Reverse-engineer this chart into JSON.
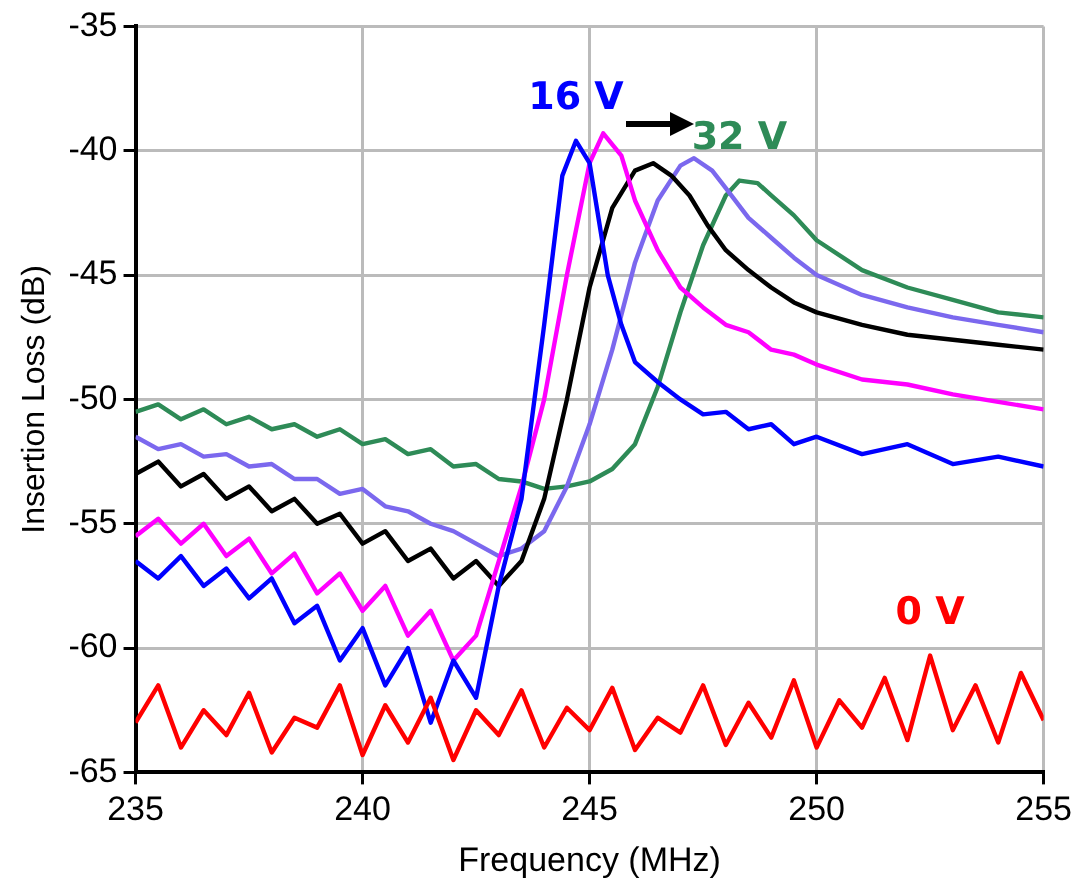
{
  "chart_data": {
    "type": "line",
    "xlabel": "Frequency (MHz)",
    "ylabel": "Insertion Loss (dB)",
    "xlim": [
      235,
      255
    ],
    "xticks": [
      235,
      240,
      245,
      250,
      255
    ],
    "ylim": [
      -65,
      -35
    ],
    "yticks": [
      -65,
      -60,
      -55,
      -50,
      -45,
      -40,
      -35
    ],
    "grid": true,
    "legend": false,
    "marker": "none",
    "line_style": "solid",
    "series": [
      {
        "name": "0 V",
        "color": "#ff0000",
        "x": [
          235,
          235.5,
          236,
          236.5,
          237,
          237.5,
          238,
          238.5,
          239,
          239.5,
          240,
          240.5,
          241,
          241.5,
          242,
          242.5,
          243,
          243.5,
          244,
          244.5,
          245,
          245.5,
          246,
          246.5,
          247,
          247.5,
          248,
          248.5,
          249,
          249.5,
          250,
          250.5,
          251,
          251.5,
          252,
          252.5,
          253,
          253.5,
          254,
          254.5,
          255
        ],
        "values": [
          -63,
          -61.5,
          -64,
          -62.5,
          -63.5,
          -61.8,
          -64.2,
          -62.8,
          -63.2,
          -61.5,
          -64.3,
          -62.3,
          -63.8,
          -62,
          -64.5,
          -62.5,
          -63.5,
          -61.7,
          -64,
          -62.4,
          -63.3,
          -61.6,
          -64.1,
          -62.8,
          -63.4,
          -61.5,
          -63.9,
          -62.2,
          -63.6,
          -61.3,
          -64,
          -62.1,
          -63.2,
          -61.2,
          -63.7,
          -60.3,
          -63.3,
          -61.5,
          -63.8,
          -61,
          -62.9
        ]
      },
      {
        "name": "16 V",
        "color": "#0000ff",
        "x": [
          235,
          235.5,
          236,
          236.5,
          237,
          237.5,
          238,
          238.5,
          239,
          239.5,
          240,
          240.5,
          241,
          241.5,
          242,
          242.5,
          243,
          243.5,
          244,
          244.4,
          244.7,
          245,
          245.4,
          245.7,
          246,
          246.5,
          247,
          247.5,
          248,
          248.5,
          249,
          249.5,
          250,
          251,
          252,
          253,
          254,
          255
        ],
        "values": [
          -56.5,
          -57.2,
          -56.3,
          -57.5,
          -56.8,
          -58,
          -57.2,
          -59,
          -58.3,
          -60.5,
          -59.2,
          -61.5,
          -60,
          -63,
          -60.5,
          -62,
          -57.5,
          -54,
          -47,
          -41,
          -39.6,
          -40.5,
          -45,
          -47,
          -48.5,
          -49.3,
          -50,
          -50.6,
          -50.5,
          -51.2,
          -51,
          -51.8,
          -51.5,
          -52.2,
          -51.8,
          -52.6,
          -52.3,
          -52.7
        ]
      },
      {
        "color": "#ff00ff",
        "x": [
          235,
          235.5,
          236,
          236.5,
          237,
          237.5,
          238,
          238.5,
          239,
          239.5,
          240,
          240.5,
          241,
          241.5,
          242,
          242.5,
          243,
          243.5,
          244,
          244.5,
          245,
          245.3,
          245.7,
          246,
          246.5,
          247,
          247.5,
          248,
          248.5,
          249,
          249.5,
          250,
          251,
          252,
          253,
          254,
          255
        ],
        "values": [
          -55.5,
          -54.8,
          -55.8,
          -55,
          -56.3,
          -55.6,
          -57,
          -56.2,
          -57.8,
          -57,
          -58.5,
          -57.5,
          -59.5,
          -58.5,
          -60.5,
          -59.5,
          -56.5,
          -53.5,
          -50,
          -45,
          -40.5,
          -39.3,
          -40.2,
          -42,
          -44,
          -45.5,
          -46.3,
          -47,
          -47.3,
          -48,
          -48.2,
          -48.6,
          -49.2,
          -49.4,
          -49.8,
          -50.1,
          -50.4
        ]
      },
      {
        "color": "#000000",
        "x": [
          235,
          235.5,
          236,
          236.5,
          237,
          237.5,
          238,
          238.5,
          239,
          239.5,
          240,
          240.5,
          241,
          241.5,
          242,
          242.5,
          243,
          243.5,
          244,
          244.5,
          245,
          245.5,
          246,
          246.4,
          246.8,
          247.2,
          247.6,
          248,
          248.5,
          249,
          249.5,
          250,
          251,
          252,
          253,
          254,
          255
        ],
        "values": [
          -53,
          -52.5,
          -53.5,
          -53,
          -54,
          -53.5,
          -54.5,
          -54,
          -55,
          -54.6,
          -55.8,
          -55.3,
          -56.5,
          -56,
          -57.2,
          -56.5,
          -57.5,
          -56.5,
          -54,
          -50,
          -45.5,
          -42.3,
          -40.8,
          -40.5,
          -41,
          -41.8,
          -43,
          -44,
          -44.8,
          -45.5,
          -46.1,
          -46.5,
          -47,
          -47.4,
          -47.6,
          -47.8,
          -48
        ]
      },
      {
        "color": "#7b68ee",
        "x": [
          235,
          235.5,
          236,
          236.5,
          237,
          237.5,
          238,
          238.5,
          239,
          239.5,
          240,
          240.5,
          241,
          241.5,
          242,
          242.5,
          243,
          243.5,
          244,
          244.5,
          245,
          245.5,
          246,
          246.5,
          247,
          247.3,
          247.7,
          248,
          248.5,
          249,
          249.5,
          250,
          251,
          252,
          253,
          254,
          255
        ],
        "values": [
          -51.5,
          -52,
          -51.8,
          -52.3,
          -52.2,
          -52.7,
          -52.6,
          -53.2,
          -53.2,
          -53.8,
          -53.6,
          -54.3,
          -54.5,
          -55,
          -55.3,
          -55.8,
          -56.3,
          -56,
          -55.3,
          -53.5,
          -51,
          -48,
          -44.5,
          -42,
          -40.6,
          -40.3,
          -40.8,
          -41.5,
          -42.7,
          -43.5,
          -44.3,
          -45,
          -45.8,
          -46.3,
          -46.7,
          -47,
          -47.3
        ]
      },
      {
        "name": "32 V",
        "color": "#2e8b57",
        "x": [
          235,
          235.5,
          236,
          236.5,
          237,
          237.5,
          238,
          238.5,
          239,
          239.5,
          240,
          240.5,
          241,
          241.5,
          242,
          242.5,
          243,
          243.5,
          244,
          244.5,
          245,
          245.5,
          246,
          246.5,
          247,
          247.5,
          248,
          248.3,
          248.7,
          249,
          249.5,
          250,
          251,
          252,
          253,
          254,
          255
        ],
        "values": [
          -50.5,
          -50.2,
          -50.8,
          -50.4,
          -51,
          -50.7,
          -51.2,
          -51,
          -51.5,
          -51.2,
          -51.8,
          -51.6,
          -52.2,
          -52,
          -52.7,
          -52.6,
          -53.2,
          -53.3,
          -53.6,
          -53.5,
          -53.3,
          -52.8,
          -51.8,
          -49.5,
          -46.5,
          -43.8,
          -41.8,
          -41.2,
          -41.3,
          -41.8,
          -42.6,
          -43.6,
          -44.8,
          -45.5,
          -46,
          -46.5,
          -46.7
        ]
      }
    ]
  }
}
